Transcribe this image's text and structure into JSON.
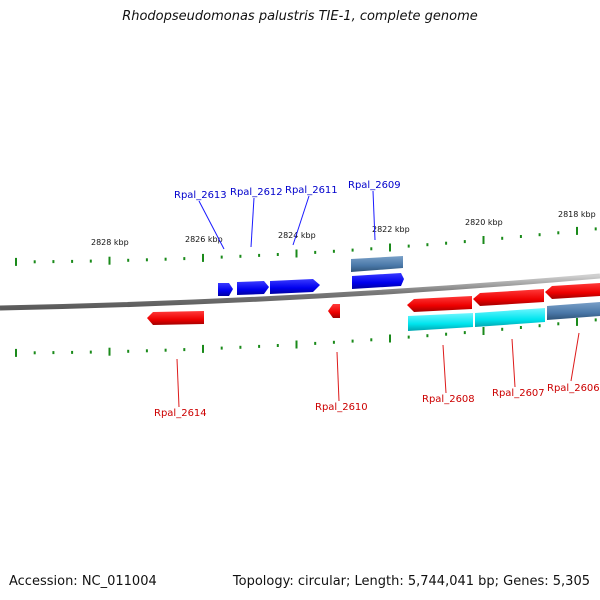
{
  "title": "Rhodopseudomonas palustris TIE-1, complete genome",
  "footer": {
    "accession": "Accession: NC_011004",
    "stats": "Topology: circular; Length: 5,744,041 bp; Genes: 5,305"
  },
  "colors": {
    "backbone": "#8a8a8a",
    "tick": "#1a8a1a",
    "forward_gene": "#0000ee",
    "reverse_gene": "#ee0000",
    "highlight_cyan": "#00e5ee",
    "steel_blue": "#4a78a8",
    "forward_label": "#0000cc",
    "reverse_label": "#cc0000"
  },
  "scale_labels": [
    {
      "text": "2828 kbp",
      "kbp": 2828
    },
    {
      "text": "2826 kbp",
      "kbp": 2826
    },
    {
      "text": "2824 kbp",
      "kbp": 2824
    },
    {
      "text": "2822 kbp",
      "kbp": 2822
    },
    {
      "text": "2820 kbp",
      "kbp": 2820
    },
    {
      "text": "2818 kbp",
      "kbp": 2818
    }
  ],
  "genes": [
    {
      "label": "Rpal_2613",
      "strand": "forward"
    },
    {
      "label": "Rpal_2612",
      "strand": "forward"
    },
    {
      "label": "Rpal_2611",
      "strand": "forward"
    },
    {
      "label": "Rpal_2609",
      "strand": "forward"
    },
    {
      "label": "Rpal_2614",
      "strand": "reverse"
    },
    {
      "label": "Rpal_2610",
      "strand": "reverse"
    },
    {
      "label": "Rpal_2608",
      "strand": "reverse"
    },
    {
      "label": "Rpal_2607",
      "strand": "reverse"
    },
    {
      "label": "Rpal_2606",
      "strand": "reverse"
    }
  ]
}
